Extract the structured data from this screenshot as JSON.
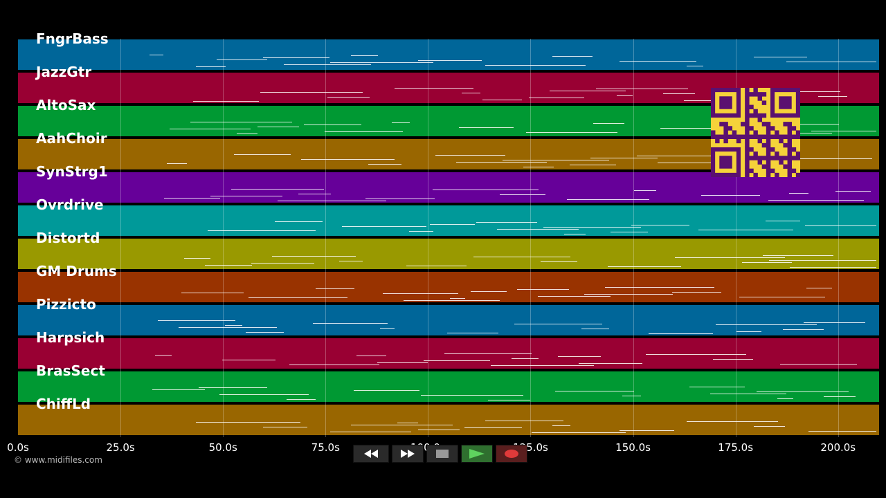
{
  "tracks": [
    {
      "name": "FngrBass",
      "color": "#006699"
    },
    {
      "name": "JazzGtr",
      "color": "#990033"
    },
    {
      "name": "AltoSax",
      "color": "#009933"
    },
    {
      "name": "AahChoir",
      "color": "#996600"
    },
    {
      "name": "SynStrg1",
      "color": "#660099"
    },
    {
      "name": "Ovrdrive",
      "color": "#009999"
    },
    {
      "name": "Distortd",
      "color": "#999900"
    },
    {
      "name": "GM Drums",
      "color": "#993300"
    },
    {
      "name": "Pizzicto",
      "color": "#006699"
    },
    {
      "name": "Harpsich",
      "color": "#990033"
    },
    {
      "name": "BrasSect",
      "color": "#009933"
    },
    {
      "name": "ChiffLd",
      "color": "#996600"
    }
  ],
  "timeline": {
    "ticks": [
      "0.0s",
      "25.0s",
      "50.0s",
      "75.0s",
      "100.0s",
      "125.0s",
      "150.0s",
      "175.0s",
      "200.0s"
    ],
    "seconds_per_tick": 25,
    "duration_seconds": 210
  },
  "copyright": "© www.midifiles.com",
  "transport": {
    "buttons": [
      {
        "name": "rewind-button",
        "icon": "rewind-icon"
      },
      {
        "name": "fast-forward-button",
        "icon": "fast-forward-icon"
      },
      {
        "name": "stop-button",
        "icon": "stop-icon"
      },
      {
        "name": "play-button",
        "icon": "play-icon"
      },
      {
        "name": "record-button",
        "icon": "record-icon"
      }
    ]
  },
  "qr_code": {
    "icon": "qr-code-icon",
    "fg": "#5a1070",
    "bg": "#f5d23a"
  }
}
